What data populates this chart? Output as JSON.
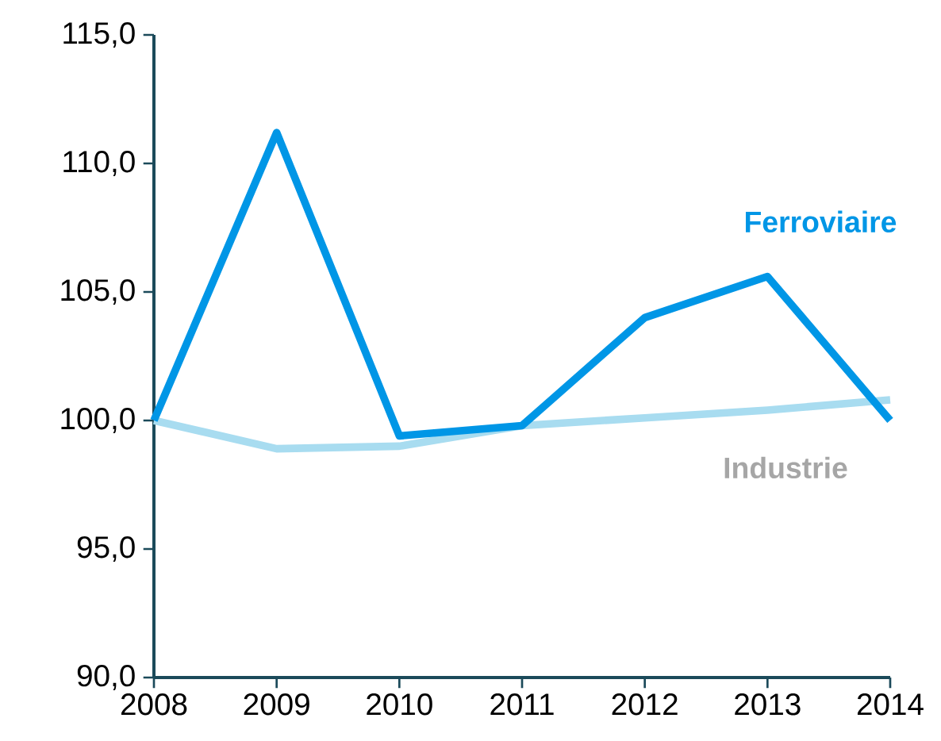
{
  "chart_data": {
    "type": "line",
    "x": [
      2008,
      2009,
      2010,
      2011,
      2012,
      2013,
      2014
    ],
    "series": [
      {
        "name": "Ferroviaire",
        "color": "#0096e6",
        "values": [
          100.0,
          111.2,
          99.4,
          99.8,
          104.0,
          105.6,
          100.0
        ]
      },
      {
        "name": "Industrie",
        "color": "#a8dcf0",
        "values": [
          100.0,
          98.9,
          99.0,
          99.8,
          100.1,
          100.4,
          100.8
        ]
      }
    ],
    "xlim": [
      2008,
      2014
    ],
    "xticks": [
      2008,
      2009,
      2010,
      2011,
      2012,
      2013,
      2014
    ],
    "ylim": [
      90,
      115
    ],
    "yticks": [
      {
        "value": 90,
        "label": "90,0"
      },
      {
        "value": 95,
        "label": "95,0"
      },
      {
        "value": 100,
        "label": "100,0"
      },
      {
        "value": 105,
        "label": "105,0"
      },
      {
        "value": 110,
        "label": "110,0"
      },
      {
        "value": 115,
        "label": "115,0"
      }
    ],
    "grid": false,
    "legend": false,
    "marker": "none",
    "line_style": "solid"
  }
}
